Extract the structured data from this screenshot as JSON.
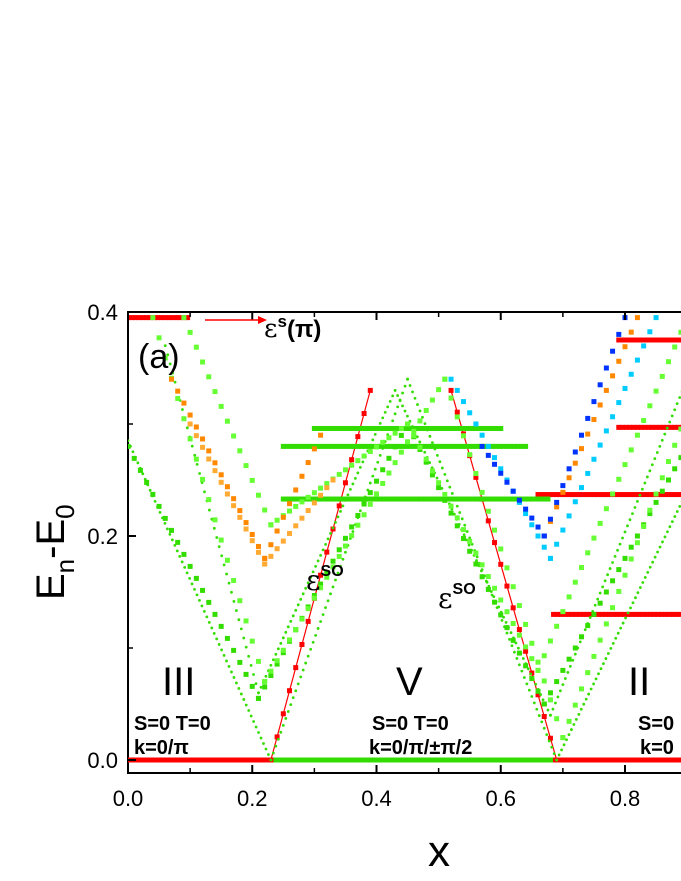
{
  "chart_data": {
    "type": "scatter",
    "panel_label": "(a)",
    "xlabel": "x",
    "ylabel": {
      "main": "E",
      "sub1": "n",
      "mid": "-E",
      "sub2": "0"
    },
    "xlim": [
      0.0,
      0.9
    ],
    "ylim": [
      -0.02,
      0.4
    ],
    "xticks": [
      "0.0",
      "0.2",
      "0.4",
      "0.6",
      "0.8"
    ],
    "yticks": [
      "0.0",
      "0.2",
      "0.4"
    ],
    "annotations": {
      "eps_s_pi": {
        "base": "ε",
        "sup": "s",
        "arg": "(π)"
      },
      "eps_so_1": {
        "base": "ε",
        "sup": "SO"
      },
      "eps_so_2": {
        "base": "ε",
        "sup": "SO"
      }
    },
    "regions": [
      {
        "name": "III",
        "line1": "S=0 T=0",
        "line2": "k=0/π"
      },
      {
        "name": "V",
        "line1": "S=0 T=0",
        "line2": "k=0/π/±π/2"
      },
      {
        "name": "II",
        "line1": "S=0",
        "line2": "k=0"
      }
    ],
    "colors": {
      "red": "#ff0000",
      "green": "#33dd00",
      "light_green": "#66ff33",
      "orange": "#ff8800",
      "light_orange": "#ffaa33",
      "blue": "#0033ff",
      "cyan": "#00ccff"
    },
    "series": [
      {
        "name": "ground level",
        "color": "red",
        "marker": "square",
        "x_range": [
          0.0,
          0.9
        ],
        "y": 0.0
      },
      {
        "name": "eps_s(pi) level",
        "color": "red",
        "marker": "square",
        "x_range": [
          0.0,
          0.1
        ],
        "y": 0.395
      },
      {
        "name": "ground level green",
        "color": "green",
        "marker": "square",
        "x_range": [
          0.23,
          0.68
        ],
        "y": 0.0
      },
      {
        "name": "eps_SO branch 1",
        "color": "red",
        "marker": "square",
        "points": [
          [
            0.23,
            0.0
          ],
          [
            0.39,
            0.33
          ]
        ]
      },
      {
        "name": "eps_SO branch 2",
        "color": "red",
        "marker": "square",
        "points": [
          [
            0.52,
            0.33
          ],
          [
            0.69,
            0.0
          ]
        ]
      },
      {
        "name": "plateau red 1",
        "color": "red",
        "marker": "square",
        "x_range": [
          0.685,
          0.9
        ],
        "y": 0.13
      },
      {
        "name": "plateau red 2",
        "color": "red",
        "marker": "square",
        "x_range": [
          0.66,
          0.9
        ],
        "y": 0.237
      },
      {
        "name": "plateau red 3",
        "color": "red",
        "marker": "square",
        "x_range": [
          0.79,
          0.9
        ],
        "y": 0.297
      },
      {
        "name": "plateau red 4",
        "color": "red",
        "marker": "square",
        "x_range": [
          0.79,
          0.9
        ],
        "y": 0.375
      },
      {
        "name": "plateau green 1",
        "color": "green",
        "marker": "square",
        "x_range": [
          0.25,
          0.68
        ],
        "y": 0.233
      },
      {
        "name": "plateau green 2",
        "color": "green",
        "marker": "square",
        "x_range": [
          0.25,
          0.64
        ],
        "y": 0.28
      },
      {
        "name": "plateau green 3",
        "color": "green",
        "marker": "square",
        "x_range": [
          0.3,
          0.6
        ],
        "y": 0.296
      },
      {
        "name": "V-curve green main",
        "color": "green",
        "marker": "dot",
        "points": [
          [
            0.0,
            0.285
          ],
          [
            0.23,
            0.0
          ],
          [
            0.45,
            0.34
          ],
          [
            0.69,
            0.0
          ],
          [
            0.9,
            0.24
          ]
        ]
      },
      {
        "name": "V-curve green upper",
        "color": "green",
        "marker": "dot",
        "points": [
          [
            0.06,
            0.37
          ],
          [
            0.21,
            0.06
          ],
          [
            0.43,
            0.33
          ],
          [
            0.68,
            0.04
          ],
          [
            0.9,
            0.34
          ]
        ]
      },
      {
        "name": "V-curve green squares",
        "color": "green",
        "marker": "square",
        "points": [
          [
            0.0,
            0.28
          ],
          [
            0.21,
            0.055
          ],
          [
            0.45,
            0.3
          ],
          [
            0.67,
            0.05
          ],
          [
            0.9,
            0.28
          ]
        ]
      },
      {
        "name": "V-curve light green",
        "color": "light_green",
        "marker": "square",
        "points": [
          [
            0.04,
            0.395
          ],
          [
            0.22,
            0.07
          ],
          [
            0.51,
            0.34
          ],
          [
            0.7,
            0.02
          ],
          [
            0.9,
            0.31
          ]
        ]
      },
      {
        "name": "V-curve light green 2",
        "color": "light_green",
        "marker": "square",
        "points": [
          [
            0.09,
            0.395
          ],
          [
            0.23,
            0.21
          ],
          [
            0.45,
            0.3
          ],
          [
            0.66,
            0.08
          ],
          [
            0.9,
            0.395
          ]
        ]
      },
      {
        "name": "orange V",
        "color": "orange",
        "marker": "square",
        "points": [
          [
            0.07,
            0.34
          ],
          [
            0.22,
            0.18
          ],
          [
            0.31,
            0.29
          ]
        ]
      },
      {
        "name": "orange V 2",
        "color": "light_orange",
        "marker": "square",
        "points": [
          [
            0.1,
            0.3
          ],
          [
            0.22,
            0.175
          ],
          [
            0.33,
            0.25
          ]
        ]
      },
      {
        "name": "orange right",
        "color": "orange",
        "marker": "square",
        "points": [
          [
            0.67,
            0.2
          ],
          [
            0.82,
            0.395
          ]
        ]
      },
      {
        "name": "cyan right",
        "color": "cyan",
        "marker": "square",
        "points": [
          [
            0.52,
            0.34
          ],
          [
            0.68,
            0.18
          ],
          [
            0.85,
            0.395
          ]
        ]
      },
      {
        "name": "blue right",
        "color": "blue",
        "marker": "square",
        "points": [
          [
            0.57,
            0.28
          ],
          [
            0.67,
            0.2
          ],
          [
            0.8,
            0.395
          ]
        ]
      }
    ]
  }
}
